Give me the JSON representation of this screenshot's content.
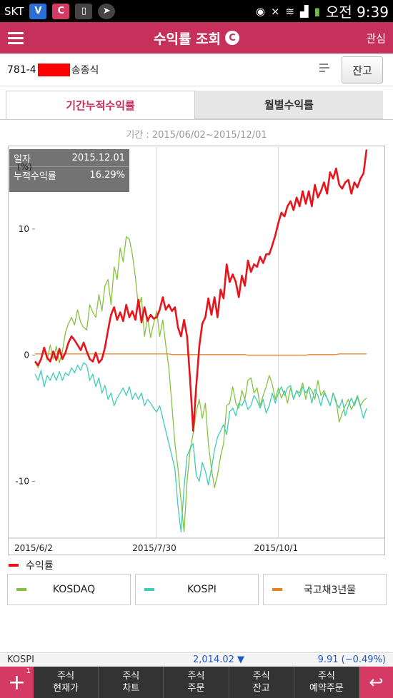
{
  "statusbar": {
    "carrier": "SKT",
    "time_label": "오전 9:39"
  },
  "header": {
    "title": "수익률 조회",
    "logo_letter": "C",
    "right_button": "관심"
  },
  "account": {
    "prefix": "781-4",
    "suffix": "송종식",
    "balance_button": "잔고"
  },
  "tabs": [
    {
      "label": "기간누적수익률",
      "active": true
    },
    {
      "label": "월별수익률",
      "active": false
    }
  ],
  "period": "기간 : 2015/06/02~2015/12/01",
  "tooltip": {
    "date_label": "일자",
    "date_value": "2015.12.01",
    "return_label": "누적수익률",
    "return_value": "16.29%"
  },
  "chart_data": {
    "type": "line",
    "ylabel": "(%)",
    "ylim": [
      -14.5,
      16.5
    ],
    "yticks": [
      10,
      0,
      -10
    ],
    "ytick_labels": [
      "10",
      "0",
      "-10"
    ],
    "x_tick_labels": [
      "2015/6/2",
      "2015/7/30",
      "2015/10/1"
    ],
    "x_tick_index": [
      0,
      40,
      80
    ],
    "grid": true,
    "series": [
      {
        "name": "수익률",
        "color": "#e8141c",
        "values": [
          -0.5,
          -0.8,
          -0.3,
          0.6,
          -0.2,
          -0.5,
          0.3,
          -0.4,
          0.5,
          -0.3,
          0.2,
          1.0,
          1.5,
          1.2,
          0.8,
          0.4,
          1.0,
          0.3,
          -0.3,
          -0.5,
          0.2,
          -0.6,
          -0.3,
          0.6,
          2.0,
          3.2,
          3.8,
          2.8,
          3.4,
          2.7,
          4.0,
          3.0,
          3.5,
          2.8,
          4.4,
          2.6,
          3.8,
          2.7,
          3.2,
          2.9,
          3.0,
          3.6,
          4.6,
          3.6,
          4.0,
          3.5,
          3.8,
          2.2,
          1.5,
          2.8,
          1.5,
          -2.0,
          -6.0,
          -2.5,
          0.7,
          2.5,
          3.0,
          4.5,
          3.2,
          4.6,
          3.0,
          5.2,
          4.5,
          7.2,
          5.8,
          6.4,
          5.8,
          4.6,
          6.3,
          5.5,
          7.5,
          6.6,
          7.2,
          7.0,
          7.8,
          7.3,
          8.0,
          8.0,
          8.7,
          9.5,
          10.5,
          11.3,
          11.0,
          11.8,
          12.2,
          11.5,
          12.5,
          11.8,
          13.0,
          12.0,
          13.0,
          11.8,
          13.5,
          12.5,
          13.0,
          13.7,
          12.8,
          14.5,
          14.0,
          14.8,
          13.5,
          13.2,
          13.7,
          13.9,
          12.8,
          13.7,
          13.3,
          14.0,
          14.4,
          16.3
        ]
      },
      {
        "name": "KOSDAQ",
        "color": "#86c33c",
        "values": [
          -0.5,
          -1.0,
          -0.2,
          0.6,
          -0.4,
          0.8,
          -0.3,
          0.7,
          -0.6,
          0.3,
          1.8,
          2.5,
          3.0,
          2.4,
          3.6,
          2.6,
          2.2,
          2.0,
          4.0,
          3.4,
          3.0,
          4.8,
          3.5,
          5.5,
          6.0,
          4.0,
          7.0,
          6.0,
          8.5,
          7.4,
          9.4,
          9.2,
          8.0,
          6.2,
          3.8,
          4.6,
          1.5,
          3.0,
          1.4,
          2.5,
          3.5,
          1.5,
          2.8,
          0.8,
          -1.0,
          -4.0,
          -7.0,
          -9.0,
          -11.5,
          -14.0,
          -10.0,
          -7.5,
          -6.2,
          -4.5,
          -3.5,
          -5.0,
          -3.8,
          -7.0,
          -9.0,
          -10.5,
          -9.5,
          -8.0,
          -7.0,
          -4.0,
          -3.8,
          -2.5,
          -3.8,
          -4.2,
          -2.8,
          -3.5,
          -2.0,
          -1.8,
          -3.0,
          -2.6,
          -4.0,
          -3.2,
          -2.5,
          -1.6,
          -2.3,
          -3.5,
          -2.6,
          -3.4,
          -2.8,
          -3.8,
          -2.6,
          -3.5,
          -2.8,
          -3.0,
          -2.2,
          -3.5,
          -2.5,
          -2.8,
          -3.5,
          -2.0,
          -3.2,
          -2.8,
          -3.4,
          -4.0,
          -3.0,
          -3.6,
          -5.3,
          -4.6,
          -4.0,
          -3.5,
          -4.3,
          -3.8,
          -3.2,
          -4.0,
          -3.6,
          -3.4
        ]
      },
      {
        "name": "KOSPI",
        "color": "#3ecdb8",
        "values": [
          -1.5,
          -2.0,
          -1.2,
          -2.5,
          -1.6,
          -2.0,
          -1.4,
          -2.0,
          -1.3,
          -2.0,
          -1.4,
          -1.6,
          -1.0,
          -1.4,
          -0.8,
          -1.2,
          -0.6,
          -0.8,
          -2.0,
          -1.5,
          -2.5,
          -1.8,
          -3.0,
          -2.4,
          -3.5,
          -3.0,
          -4.0,
          -3.4,
          -3.0,
          -2.6,
          -3.2,
          -2.5,
          -3.5,
          -3.0,
          -3.5,
          -3.0,
          -4.0,
          -3.5,
          -3.8,
          -4.2,
          -4.5,
          -4.0,
          -5.0,
          -6.0,
          -7.0,
          -8.0,
          -9.0,
          -12.0,
          -14.0,
          -10.5,
          -8.0,
          -7.4,
          -7.0,
          -9.5,
          -10.0,
          -8.5,
          -9.2,
          -10.3,
          -9.0,
          -7.5,
          -6.5,
          -6.0,
          -5.5,
          -6.3,
          -4.5,
          -4.2,
          -4.8,
          -3.8,
          -4.0,
          -3.5,
          -4.3,
          -4.0,
          -3.2,
          -3.6,
          -4.2,
          -3.5,
          -4.6,
          -4.0,
          -3.0,
          -3.8,
          -3.0,
          -2.5,
          -3.2,
          -2.6,
          -2.4,
          -3.5,
          -2.8,
          -3.3,
          -2.5,
          -3.0,
          -2.6,
          -3.8,
          -2.7,
          -3.2,
          -4.0,
          -3.0,
          -3.4,
          -4.0,
          -3.0,
          -3.8,
          -4.2,
          -3.5,
          -4.8,
          -4.0,
          -3.4,
          -4.0,
          -3.3,
          -4.1,
          -5.0,
          -4.2
        ]
      },
      {
        "name": "국고채3년물",
        "color": "#e68226",
        "values": [
          0.1,
          0.1,
          0.1,
          0.1,
          0.1,
          0.1,
          0.1,
          0.1,
          0.1,
          0.1,
          0.1,
          0.1,
          0.1,
          0.1,
          0.1,
          0.1,
          0.1,
          0.1,
          0.1,
          0.1,
          0.1,
          0.1,
          0.1,
          0.1,
          0.1,
          0.1,
          0.1,
          0.1,
          0.1,
          0.1,
          0.1,
          0.1,
          0.1,
          0.1,
          0.1,
          0.1,
          0.1,
          0.1,
          0.1,
          0.1,
          0.1,
          0.1,
          0.1,
          0.1,
          0.1,
          0.05,
          0.05,
          0.05,
          0.05,
          0.05,
          0.05,
          0.05,
          0.05,
          0.05,
          0.05,
          0.05,
          0.05,
          0.05,
          0.05,
          0.05,
          0.05,
          0.05,
          0.05,
          0.05,
          0.05,
          0.05,
          0.05,
          0.05,
          0.05,
          0.05,
          0.0,
          0.0,
          0.0,
          0.0,
          0.0,
          0.0,
          0.0,
          0.0,
          0.0,
          0.0,
          0.0,
          0.0,
          0.0,
          0.0,
          0.0,
          0.0,
          0.0,
          0.0,
          0.0,
          0.0,
          0.05,
          0.05,
          0.05,
          0.05,
          0.05,
          0.05,
          0.05,
          0.05,
          0.05,
          0.05,
          0.1,
          0.1,
          0.1,
          0.1,
          0.1,
          0.1,
          0.1,
          0.1,
          0.1,
          0.1
        ]
      }
    ]
  },
  "legend": {
    "main_label": "수익률",
    "main_color": "#e8141c",
    "items": [
      {
        "label": "KOSDAQ",
        "color": "#86c33c"
      },
      {
        "label": "KOSPI",
        "color": "#3ecdb8"
      },
      {
        "label": "국고채3년물",
        "color": "#e68226"
      }
    ]
  },
  "ticker": {
    "name": "KOSPI",
    "price": "2,014.02 ▼",
    "change": "9.91 (−0.49%)"
  },
  "bottom_nav": {
    "plus_badge": "1",
    "items": [
      {
        "line1": "주식",
        "line2": "현재가"
      },
      {
        "line1": "주식",
        "line2": "차트"
      },
      {
        "line1": "주식",
        "line2": "주문"
      },
      {
        "line1": "주식",
        "line2": "잔고"
      },
      {
        "line1": "주식",
        "line2": "예약주문"
      }
    ]
  }
}
